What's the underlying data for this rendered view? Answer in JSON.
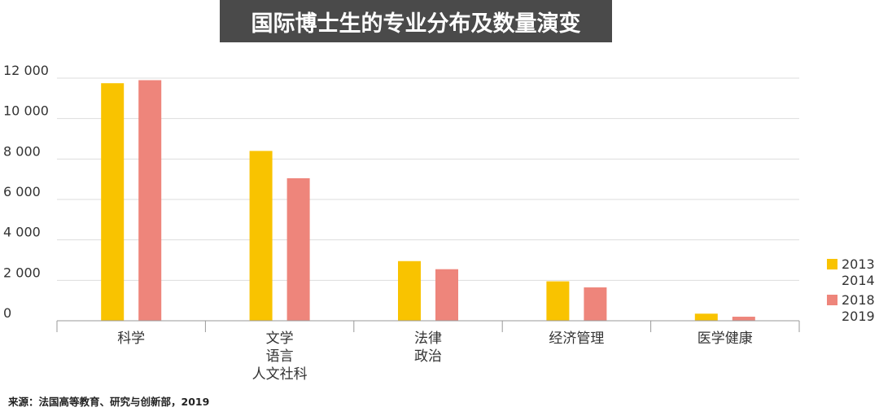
{
  "chart_data": {
    "type": "bar",
    "title": "国际博士生的专业分布及数量演变",
    "categories": [
      [
        "科学"
      ],
      [
        "文学",
        "语言",
        "人文社科"
      ],
      [
        "法律",
        "政治"
      ],
      [
        "经济管理"
      ],
      [
        "医学健康"
      ]
    ],
    "series": [
      {
        "name": [
          "2013",
          "2014"
        ],
        "color": "#f9c300",
        "values": [
          11750,
          8400,
          2950,
          1950,
          350
        ]
      },
      {
        "name": [
          "2018",
          "2019"
        ],
        "color": "#ee857b",
        "values": [
          11900,
          7050,
          2550,
          1650,
          200
        ]
      }
    ],
    "yticks": [
      "0",
      "2 000",
      "4 000",
      "6 000",
      "8 000",
      "10 000",
      "12 000"
    ],
    "ylim": [
      0,
      12000
    ],
    "grid": true,
    "legend": "right"
  },
  "source": "来源：法国高等教育、研究与创新部，2019"
}
